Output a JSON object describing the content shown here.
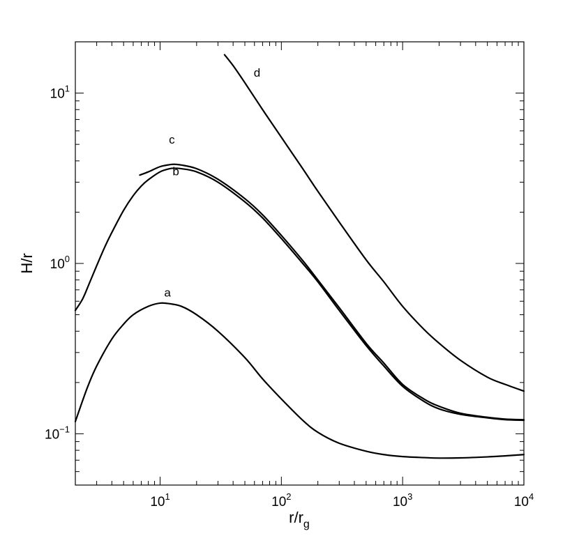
{
  "chart_data": {
    "type": "line",
    "xscale": "log",
    "yscale": "log",
    "xlim": [
      2,
      10000
    ],
    "ylim": [
      0.05,
      20
    ],
    "grid": false,
    "xlabel": {
      "main": "r/r",
      "sub": "g"
    },
    "ylabel": "H/r",
    "xticks": [
      {
        "base": "10",
        "exp": "1",
        "value": 10
      },
      {
        "base": "10",
        "exp": "2",
        "value": 100
      },
      {
        "base": "10",
        "exp": "3",
        "value": 1000
      },
      {
        "base": "10",
        "exp": "4",
        "value": 10000
      }
    ],
    "yticks": [
      {
        "base": "10",
        "exp": "−1",
        "value": 0.1
      },
      {
        "base": "10",
        "exp": "0",
        "value": 1
      },
      {
        "base": "10",
        "exp": "1",
        "value": 10
      }
    ],
    "series": [
      {
        "name": "a",
        "label_at": [
          11.5,
          0.64
        ],
        "points": [
          [
            2,
            0.118
          ],
          [
            2.5,
            0.185
          ],
          [
            3,
            0.25
          ],
          [
            4,
            0.36
          ],
          [
            5,
            0.44
          ],
          [
            6,
            0.5
          ],
          [
            8,
            0.56
          ],
          [
            10,
            0.585
          ],
          [
            12,
            0.58
          ],
          [
            15,
            0.56
          ],
          [
            20,
            0.5
          ],
          [
            30,
            0.4
          ],
          [
            50,
            0.28
          ],
          [
            70,
            0.21
          ],
          [
            100,
            0.16
          ],
          [
            150,
            0.12
          ],
          [
            200,
            0.102
          ],
          [
            300,
            0.088
          ],
          [
            500,
            0.079
          ],
          [
            700,
            0.0755
          ],
          [
            1000,
            0.0735
          ],
          [
            1500,
            0.0725
          ],
          [
            2000,
            0.072
          ],
          [
            3000,
            0.0722
          ],
          [
            5000,
            0.0732
          ],
          [
            7000,
            0.0742
          ],
          [
            10000,
            0.0755
          ]
        ]
      },
      {
        "name": "b",
        "label_at": [
          13.5,
          3.3
        ],
        "points": [
          [
            2,
            0.53
          ],
          [
            2.3,
            0.62
          ],
          [
            2.6,
            0.76
          ],
          [
            3,
            0.97
          ],
          [
            3.5,
            1.25
          ],
          [
            4,
            1.52
          ],
          [
            5,
            2.05
          ],
          [
            6,
            2.5
          ],
          [
            7,
            2.85
          ],
          [
            8,
            3.1
          ],
          [
            10,
            3.45
          ],
          [
            12,
            3.6
          ],
          [
            13,
            3.62
          ],
          [
            15,
            3.6
          ],
          [
            20,
            3.45
          ],
          [
            30,
            3.0
          ],
          [
            50,
            2.3
          ],
          [
            70,
            1.85
          ],
          [
            100,
            1.4
          ],
          [
            150,
            1.0
          ],
          [
            200,
            0.78
          ],
          [
            300,
            0.53
          ],
          [
            500,
            0.33
          ],
          [
            700,
            0.25
          ],
          [
            1000,
            0.19
          ],
          [
            1500,
            0.155
          ],
          [
            2000,
            0.14
          ],
          [
            3000,
            0.13
          ],
          [
            5000,
            0.124
          ],
          [
            7000,
            0.121
          ],
          [
            10000,
            0.12
          ]
        ]
      },
      {
        "name": "c",
        "label_at": [
          12.5,
          5.05
        ],
        "points": [
          [
            6.8,
            3.3
          ],
          [
            8,
            3.45
          ],
          [
            10,
            3.7
          ],
          [
            12,
            3.8
          ],
          [
            13,
            3.82
          ],
          [
            15,
            3.78
          ],
          [
            20,
            3.6
          ],
          [
            30,
            3.12
          ],
          [
            50,
            2.4
          ],
          [
            70,
            1.93
          ],
          [
            100,
            1.46
          ],
          [
            150,
            1.04
          ],
          [
            200,
            0.8
          ],
          [
            300,
            0.55
          ],
          [
            500,
            0.34
          ],
          [
            700,
            0.26
          ],
          [
            1000,
            0.195
          ],
          [
            1500,
            0.16
          ],
          [
            2000,
            0.145
          ],
          [
            3000,
            0.132
          ],
          [
            5000,
            0.125
          ],
          [
            7000,
            0.122
          ],
          [
            10000,
            0.121
          ]
        ]
      },
      {
        "name": "d",
        "label_at": [
          63,
          12.5
        ],
        "points": [
          [
            34,
            16.8
          ],
          [
            40,
            14.5
          ],
          [
            50,
            11.5
          ],
          [
            70,
            8.0
          ],
          [
            100,
            5.5
          ],
          [
            150,
            3.6
          ],
          [
            200,
            2.65
          ],
          [
            300,
            1.75
          ],
          [
            500,
            1.05
          ],
          [
            700,
            0.78
          ],
          [
            1000,
            0.56
          ],
          [
            1500,
            0.41
          ],
          [
            2000,
            0.34
          ],
          [
            3000,
            0.27
          ],
          [
            5000,
            0.215
          ],
          [
            7000,
            0.195
          ],
          [
            10000,
            0.178
          ]
        ]
      }
    ]
  }
}
